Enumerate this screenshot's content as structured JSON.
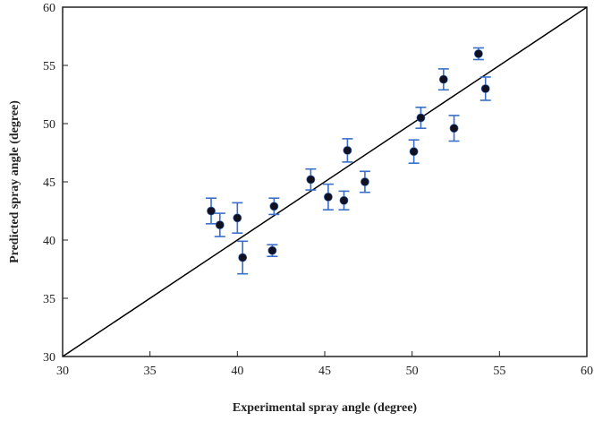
{
  "chart_data": {
    "type": "scatter",
    "title": "",
    "xlabel": "Experimental spray angle (degree)",
    "ylabel": "Predicted spray angle (degree)",
    "xlim": [
      30,
      60
    ],
    "ylim": [
      30,
      60
    ],
    "xticks": [
      30,
      35,
      40,
      45,
      50,
      55,
      60
    ],
    "yticks": [
      30,
      35,
      40,
      45,
      50,
      55,
      60
    ],
    "grid": false,
    "reference_line": {
      "type": "y=x",
      "color": "#000000"
    },
    "marker_color": "#111122",
    "errorbar_color": "#3a6fc9",
    "series": [
      {
        "points": [
          {
            "x": 38.5,
            "y": 42.5,
            "err": 1.1
          },
          {
            "x": 39.0,
            "y": 41.3,
            "err": 1.0
          },
          {
            "x": 40.0,
            "y": 41.9,
            "err": 1.3
          },
          {
            "x": 40.3,
            "y": 38.5,
            "err": 1.4
          },
          {
            "x": 42.0,
            "y": 39.1,
            "err": 0.5
          },
          {
            "x": 42.1,
            "y": 42.9,
            "err": 0.7
          },
          {
            "x": 44.2,
            "y": 45.2,
            "err": 0.9
          },
          {
            "x": 45.2,
            "y": 43.7,
            "err": 1.1
          },
          {
            "x": 46.1,
            "y": 43.4,
            "err": 0.8
          },
          {
            "x": 46.3,
            "y": 47.7,
            "err": 1.0
          },
          {
            "x": 47.3,
            "y": 45.0,
            "err": 0.9
          },
          {
            "x": 50.1,
            "y": 47.6,
            "err": 1.0
          },
          {
            "x": 50.5,
            "y": 50.5,
            "err": 0.9
          },
          {
            "x": 51.8,
            "y": 53.8,
            "err": 0.9
          },
          {
            "x": 52.4,
            "y": 49.6,
            "err": 1.1
          },
          {
            "x": 53.8,
            "y": 56.0,
            "err": 0.5
          },
          {
            "x": 54.2,
            "y": 53.0,
            "err": 1.0
          }
        ]
      }
    ]
  }
}
